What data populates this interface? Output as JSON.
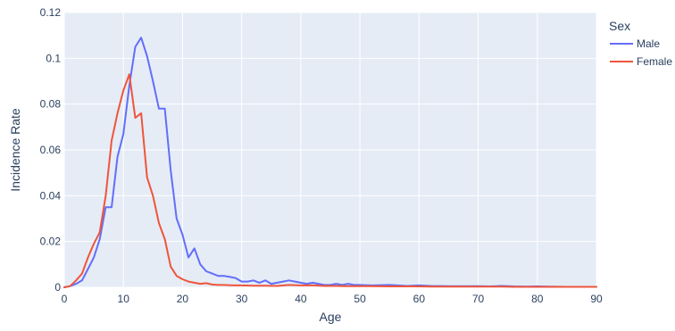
{
  "chart_data": {
    "type": "line",
    "title": "",
    "xlabel": "Age",
    "ylabel": "Incidence Rate",
    "xlim": [
      0,
      90
    ],
    "ylim": [
      0,
      0.12
    ],
    "x_ticks": [
      0,
      10,
      20,
      30,
      40,
      50,
      60,
      70,
      80,
      90
    ],
    "y_ticks": [
      0,
      0.02,
      0.04,
      0.06,
      0.08,
      0.1,
      0.12
    ],
    "y_tick_labels": [
      "0",
      "0.02",
      "0.04",
      "0.06",
      "0.08",
      "0.1",
      "0.12"
    ],
    "grid": true,
    "plot_background": "#e5ecf6",
    "legend": {
      "title": "Sex",
      "placement": "top-right outside"
    },
    "series": [
      {
        "name": "Male",
        "color": "#636efa",
        "x": [
          0,
          1,
          2,
          3,
          4,
          5,
          6,
          7,
          8,
          9,
          10,
          11,
          12,
          13,
          14,
          15,
          16,
          17,
          18,
          19,
          20,
          21,
          22,
          23,
          24,
          25,
          26,
          27,
          28,
          29,
          30,
          31,
          32,
          33,
          34,
          35,
          36,
          37,
          38,
          39,
          40,
          41,
          42,
          43,
          44,
          45,
          46,
          47,
          48,
          49,
          50,
          52,
          55,
          58,
          60,
          62,
          65,
          68,
          70,
          72,
          74,
          76,
          78,
          80,
          82,
          85,
          88,
          90
        ],
        "y": [
          0,
          0.0005,
          0.0015,
          0.003,
          0.008,
          0.013,
          0.021,
          0.035,
          0.035,
          0.057,
          0.067,
          0.088,
          0.105,
          0.109,
          0.101,
          0.09,
          0.078,
          0.078,
          0.051,
          0.03,
          0.023,
          0.013,
          0.017,
          0.01,
          0.007,
          0.006,
          0.005,
          0.005,
          0.0045,
          0.004,
          0.0025,
          0.0025,
          0.003,
          0.002,
          0.003,
          0.0015,
          0.002,
          0.0025,
          0.003,
          0.0025,
          0.002,
          0.0015,
          0.002,
          0.0015,
          0.001,
          0.001,
          0.0015,
          0.001,
          0.0015,
          0.001,
          0.001,
          0.0008,
          0.001,
          0.0006,
          0.0008,
          0.0006,
          0.0005,
          0.0005,
          0.0005,
          0.0004,
          0.0006,
          0.0004,
          0.0003,
          0.0004,
          0.0003,
          0.0002,
          0.0002,
          0.0002
        ]
      },
      {
        "name": "Female",
        "color": "#ef553b",
        "x": [
          0,
          1,
          2,
          3,
          4,
          5,
          6,
          7,
          8,
          9,
          10,
          11,
          12,
          13,
          14,
          15,
          16,
          17,
          18,
          19,
          20,
          21,
          22,
          23,
          24,
          25,
          26,
          27,
          28,
          29,
          30,
          32,
          34,
          36,
          38,
          40,
          42,
          44,
          46,
          48,
          50,
          52,
          55,
          58,
          60,
          62,
          65,
          68,
          70,
          72,
          74,
          76,
          78,
          80,
          82,
          85,
          88,
          90
        ],
        "y": [
          0,
          0.0005,
          0.003,
          0.006,
          0.013,
          0.019,
          0.024,
          0.04,
          0.064,
          0.076,
          0.086,
          0.093,
          0.074,
          0.076,
          0.048,
          0.04,
          0.028,
          0.021,
          0.009,
          0.005,
          0.0035,
          0.0025,
          0.002,
          0.0015,
          0.0018,
          0.0012,
          0.001,
          0.001,
          0.0009,
          0.0008,
          0.0008,
          0.0007,
          0.0007,
          0.0006,
          0.001,
          0.0008,
          0.0009,
          0.0006,
          0.0006,
          0.0005,
          0.0005,
          0.0005,
          0.0004,
          0.0004,
          0.0004,
          0.0003,
          0.0003,
          0.0003,
          0.0003,
          0.0003,
          0.0003,
          0.0002,
          0.0002,
          0.0002,
          0.0002,
          0.0002,
          0.0002,
          0.0002
        ]
      }
    ]
  }
}
